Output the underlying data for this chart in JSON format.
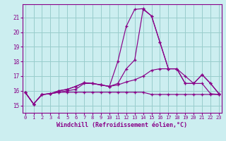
{
  "xlabel": "Windchill (Refroidissement éolien,°C)",
  "bg_color": "#cceef0",
  "grid_color": "#99cccc",
  "line_color": "#880088",
  "x_ticks": [
    0,
    1,
    2,
    3,
    4,
    5,
    6,
    7,
    8,
    9,
    10,
    11,
    12,
    13,
    14,
    15,
    16,
    17,
    18,
    19,
    20,
    21,
    22,
    23
  ],
  "y_ticks": [
    15,
    16,
    17,
    18,
    19,
    20,
    21
  ],
  "ylim": [
    14.5,
    21.9
  ],
  "xlim": [
    -0.3,
    23.3
  ],
  "series": [
    [
      15.9,
      15.1,
      15.75,
      15.8,
      15.9,
      16.0,
      16.1,
      16.5,
      16.5,
      16.4,
      16.3,
      18.0,
      20.4,
      21.55,
      21.6,
      21.1,
      19.3,
      17.5,
      17.5,
      16.5,
      16.5,
      17.1,
      16.5,
      15.8
    ],
    [
      15.9,
      15.1,
      15.75,
      15.8,
      16.0,
      16.1,
      16.3,
      16.55,
      16.5,
      16.4,
      16.3,
      16.5,
      17.5,
      18.1,
      21.55,
      21.1,
      19.3,
      17.5,
      17.5,
      16.5,
      16.5,
      17.1,
      16.5,
      15.8
    ],
    [
      15.9,
      15.1,
      15.75,
      15.8,
      16.0,
      16.1,
      16.3,
      16.55,
      16.5,
      16.4,
      16.3,
      16.4,
      16.6,
      16.75,
      17.0,
      17.4,
      17.5,
      17.5,
      17.5,
      17.0,
      16.5,
      16.5,
      15.8,
      15.75
    ],
    [
      15.9,
      15.1,
      15.75,
      15.8,
      15.9,
      15.9,
      15.9,
      15.9,
      15.9,
      15.9,
      15.9,
      15.9,
      15.9,
      15.9,
      15.9,
      15.75,
      15.75,
      15.75,
      15.75,
      15.75,
      15.75,
      15.75,
      15.75,
      15.75
    ]
  ]
}
